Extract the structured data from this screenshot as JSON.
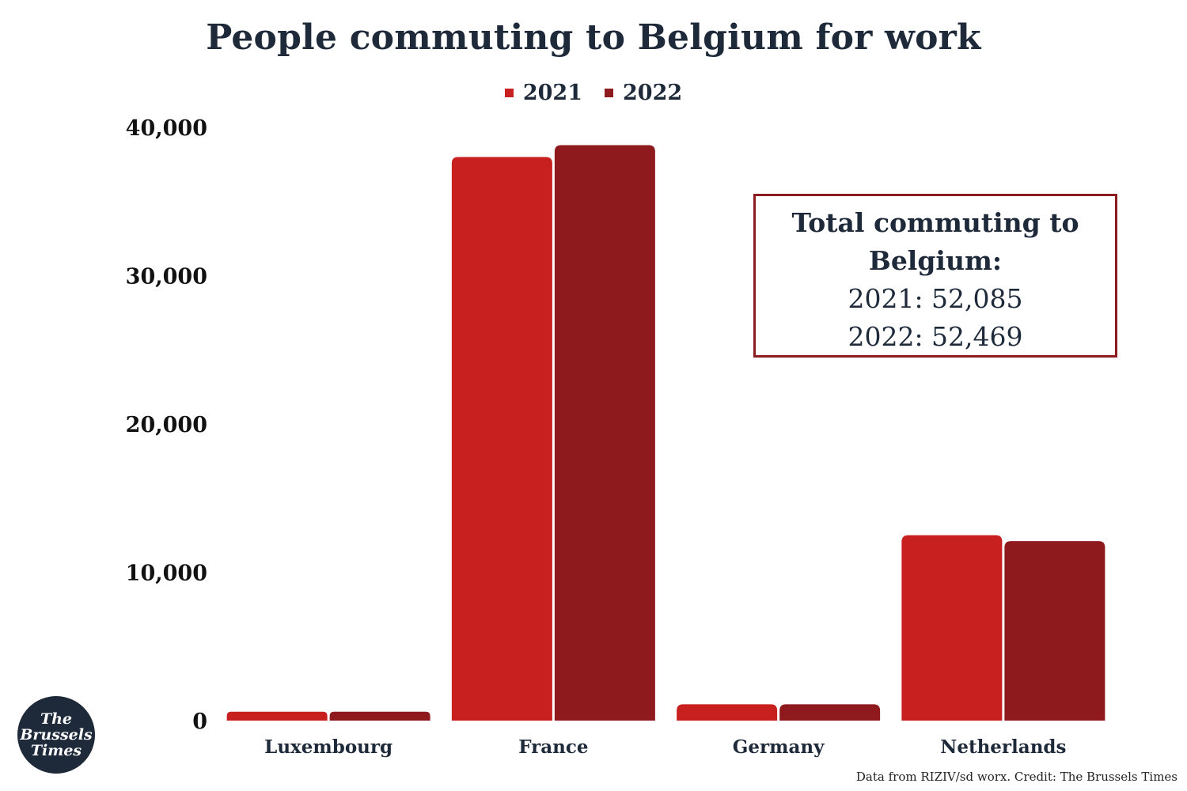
{
  "title": "People commuting to Belgium for work",
  "legend": [
    {
      "label": "2021",
      "color": "#c81f1f"
    },
    {
      "label": "2022",
      "color": "#8f1a1e"
    }
  ],
  "chart_data": {
    "type": "bar",
    "title": "People commuting to Belgium for work",
    "categories": [
      "Luxembourg",
      "France",
      "Germany",
      "Netherlands"
    ],
    "series": [
      {
        "name": "2021",
        "values": [
          600,
          38000,
          1100,
          12500
        ]
      },
      {
        "name": "2022",
        "values": [
          600,
          38800,
          1100,
          12100
        ]
      }
    ],
    "ylim": [
      0,
      40000
    ],
    "yticks": [
      0,
      10000,
      20000,
      30000,
      40000
    ],
    "ytick_labels": [
      "0",
      "10,000",
      "20,000",
      "30,000",
      "40,000"
    ],
    "grid": false,
    "legend_position": "top-center"
  },
  "totals_box": {
    "heading": "Total commuting to Belgium:",
    "line_2021": "2021: 52,085",
    "line_2022": "2022: 52,469"
  },
  "logo": {
    "line1": "The",
    "line2": "Brussels",
    "line3": "Times"
  },
  "credit": "Data from RIZIV/sd worx. Credit: The Brussels Times"
}
